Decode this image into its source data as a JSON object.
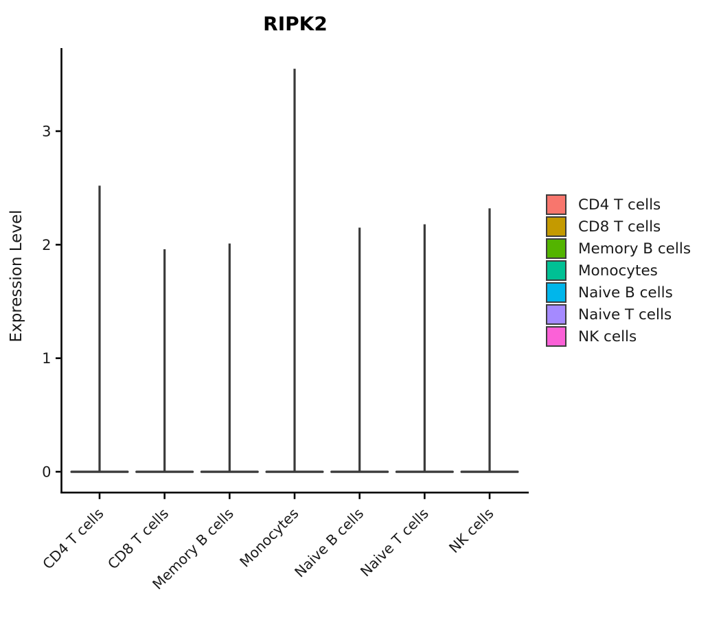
{
  "title": "RIPK2",
  "ylabel": "Expression Level",
  "chart_data": {
    "type": "violin",
    "title": "RIPK2",
    "xlabel": "",
    "ylabel": "Expression Level",
    "categories": [
      "CD4 T cells",
      "CD8 T cells",
      "Memory B cells",
      "Monocytes",
      "Naive B cells",
      "Naive T cells",
      "NK cells"
    ],
    "series": [
      {
        "name": "CD4 T cells",
        "color": "#F8766D",
        "min": 0,
        "max": 2.52
      },
      {
        "name": "CD8 T cells",
        "color": "#C49A00",
        "min": 0,
        "max": 1.96
      },
      {
        "name": "Memory B cells",
        "color": "#53B400",
        "min": 0,
        "max": 2.01
      },
      {
        "name": "Monocytes",
        "color": "#00C094",
        "min": 0,
        "max": 3.55
      },
      {
        "name": "Naive B cells",
        "color": "#00B6EB",
        "min": 0,
        "max": 2.15
      },
      {
        "name": "Naive T cells",
        "color": "#A58AFF",
        "min": 0,
        "max": 2.18
      },
      {
        "name": "NK cells",
        "color": "#FB61D7",
        "min": 0,
        "max": 2.32
      }
    ],
    "yticks": [
      0,
      1,
      2,
      3
    ],
    "ylim": [
      0,
      3.73
    ],
    "grid": false,
    "legend_position": "right",
    "shape": "narrow spike violins: density concentrated at 0 with thin tail up to max",
    "style": {
      "violin_outline_color": "#3A3A3A",
      "axis_color": "#000000",
      "tick_label_color": "#1a1a1a",
      "x_tick_label_rotation_deg": -45
    }
  },
  "legend": {
    "items": [
      {
        "label": "CD4 T cells",
        "color": "#F8766D"
      },
      {
        "label": "CD8 T cells",
        "color": "#C49A00"
      },
      {
        "label": "Memory B cells",
        "color": "#53B400"
      },
      {
        "label": "Monocytes",
        "color": "#00C094"
      },
      {
        "label": "Naive B cells",
        "color": "#00B6EB"
      },
      {
        "label": "Naive T cells",
        "color": "#A58AFF"
      },
      {
        "label": "NK cells",
        "color": "#FB61D7"
      }
    ]
  }
}
